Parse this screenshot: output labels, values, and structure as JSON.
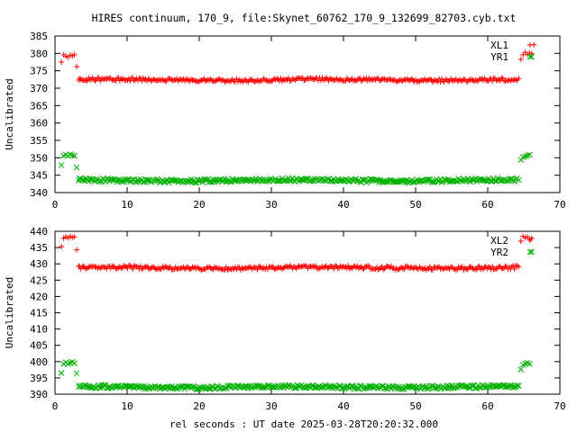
{
  "title": "HIRES continuum, 170_9, file:Skynet_60762_170_9_132699_82703.cyb.txt",
  "xlabel": "rel seconds : UT date 2025-03-28T20:20:32.000",
  "chart_data": [
    {
      "type": "scatter",
      "ylabel": "Uncalibrated",
      "xlim": [
        0,
        70
      ],
      "ylim": [
        340,
        385
      ],
      "xticks": [
        0,
        10,
        20,
        30,
        40,
        50,
        60,
        70
      ],
      "yticks": [
        340,
        345,
        350,
        355,
        360,
        365,
        370,
        375,
        380,
        385
      ],
      "legend_position": "top-right",
      "series": [
        {
          "name": "XL1",
          "marker": "plus",
          "color": "#ff0000",
          "points": [
            [
              0.9,
              377.5
            ],
            [
              1.2,
              379.6
            ],
            [
              1.5,
              379.2
            ],
            [
              1.8,
              378.9
            ],
            [
              2.1,
              379.5
            ],
            [
              2.4,
              379.3
            ],
            [
              2.7,
              379.6
            ],
            [
              3.0,
              376.2
            ],
            [
              3.3,
              372.3
            ],
            [
              64.3,
              372.8
            ],
            [
              64.6,
              378.3
            ],
            [
              64.9,
              379.6
            ],
            [
              65.2,
              380.3
            ],
            [
              65.5,
              379.7
            ],
            [
              65.8,
              380.1
            ],
            [
              66.1,
              379.9
            ],
            [
              66.4,
              382.5
            ]
          ],
          "band": {
            "x_start": 3.4,
            "x_end": 64.2,
            "step": 0.18,
            "center": 372.4,
            "spread": 0.45
          }
        },
        {
          "name": "YR1",
          "marker": "cross",
          "color": "#00b000",
          "points": [
            [
              0.9,
              347.9
            ],
            [
              1.2,
              350.6
            ],
            [
              1.5,
              350.9
            ],
            [
              1.8,
              350.5
            ],
            [
              2.1,
              351.0
            ],
            [
              2.4,
              350.7
            ],
            [
              2.7,
              350.6
            ],
            [
              3.0,
              347.2
            ],
            [
              3.3,
              343.5
            ],
            [
              64.3,
              343.6
            ],
            [
              64.6,
              349.4
            ],
            [
              64.9,
              350.2
            ],
            [
              65.2,
              350.4
            ],
            [
              65.5,
              350.6
            ],
            [
              65.8,
              350.9
            ],
            [
              66.1,
              379.0
            ]
          ],
          "band": {
            "x_start": 3.4,
            "x_end": 64.2,
            "step": 0.18,
            "center": 343.5,
            "spread": 0.5
          }
        }
      ]
    },
    {
      "type": "scatter",
      "ylabel": "Uncalibrated",
      "xlim": [
        0,
        70
      ],
      "ylim": [
        390,
        440
      ],
      "xticks": [
        0,
        10,
        20,
        30,
        40,
        50,
        60,
        70
      ],
      "yticks": [
        390,
        395,
        400,
        405,
        410,
        415,
        420,
        425,
        430,
        435,
        440
      ],
      "legend_position": "top-right",
      "series": [
        {
          "name": "XL2",
          "marker": "plus",
          "color": "#ff0000",
          "points": [
            [
              0.9,
              435.3
            ],
            [
              1.2,
              437.9
            ],
            [
              1.5,
              438.3
            ],
            [
              1.8,
              438.0
            ],
            [
              2.1,
              438.4
            ],
            [
              2.4,
              438.1
            ],
            [
              2.7,
              438.3
            ],
            [
              3.0,
              434.3
            ],
            [
              3.3,
              429.3
            ],
            [
              64.3,
              429.1
            ],
            [
              64.6,
              437.0
            ],
            [
              64.9,
              438.5
            ],
            [
              65.2,
              438.0
            ],
            [
              65.5,
              438.3
            ],
            [
              65.8,
              437.6
            ],
            [
              66.1,
              437.9
            ]
          ],
          "band": {
            "x_start": 3.4,
            "x_end": 64.2,
            "step": 0.18,
            "center": 428.8,
            "spread": 0.55
          }
        },
        {
          "name": "YR2",
          "marker": "cross",
          "color": "#00b000",
          "points": [
            [
              0.9,
              396.5
            ],
            [
              1.2,
              399.3
            ],
            [
              1.5,
              399.8
            ],
            [
              1.8,
              399.3
            ],
            [
              2.1,
              399.6
            ],
            [
              2.4,
              399.9
            ],
            [
              2.7,
              399.5
            ],
            [
              3.0,
              396.4
            ],
            [
              3.3,
              392.3
            ],
            [
              64.3,
              392.6
            ],
            [
              64.6,
              397.6
            ],
            [
              64.9,
              399.0
            ],
            [
              65.2,
              399.4
            ],
            [
              65.5,
              399.6
            ],
            [
              65.8,
              399.3
            ],
            [
              66.1,
              433.7
            ]
          ],
          "band": {
            "x_start": 3.4,
            "x_end": 64.2,
            "step": 0.18,
            "center": 392.2,
            "spread": 0.5
          }
        }
      ]
    }
  ]
}
